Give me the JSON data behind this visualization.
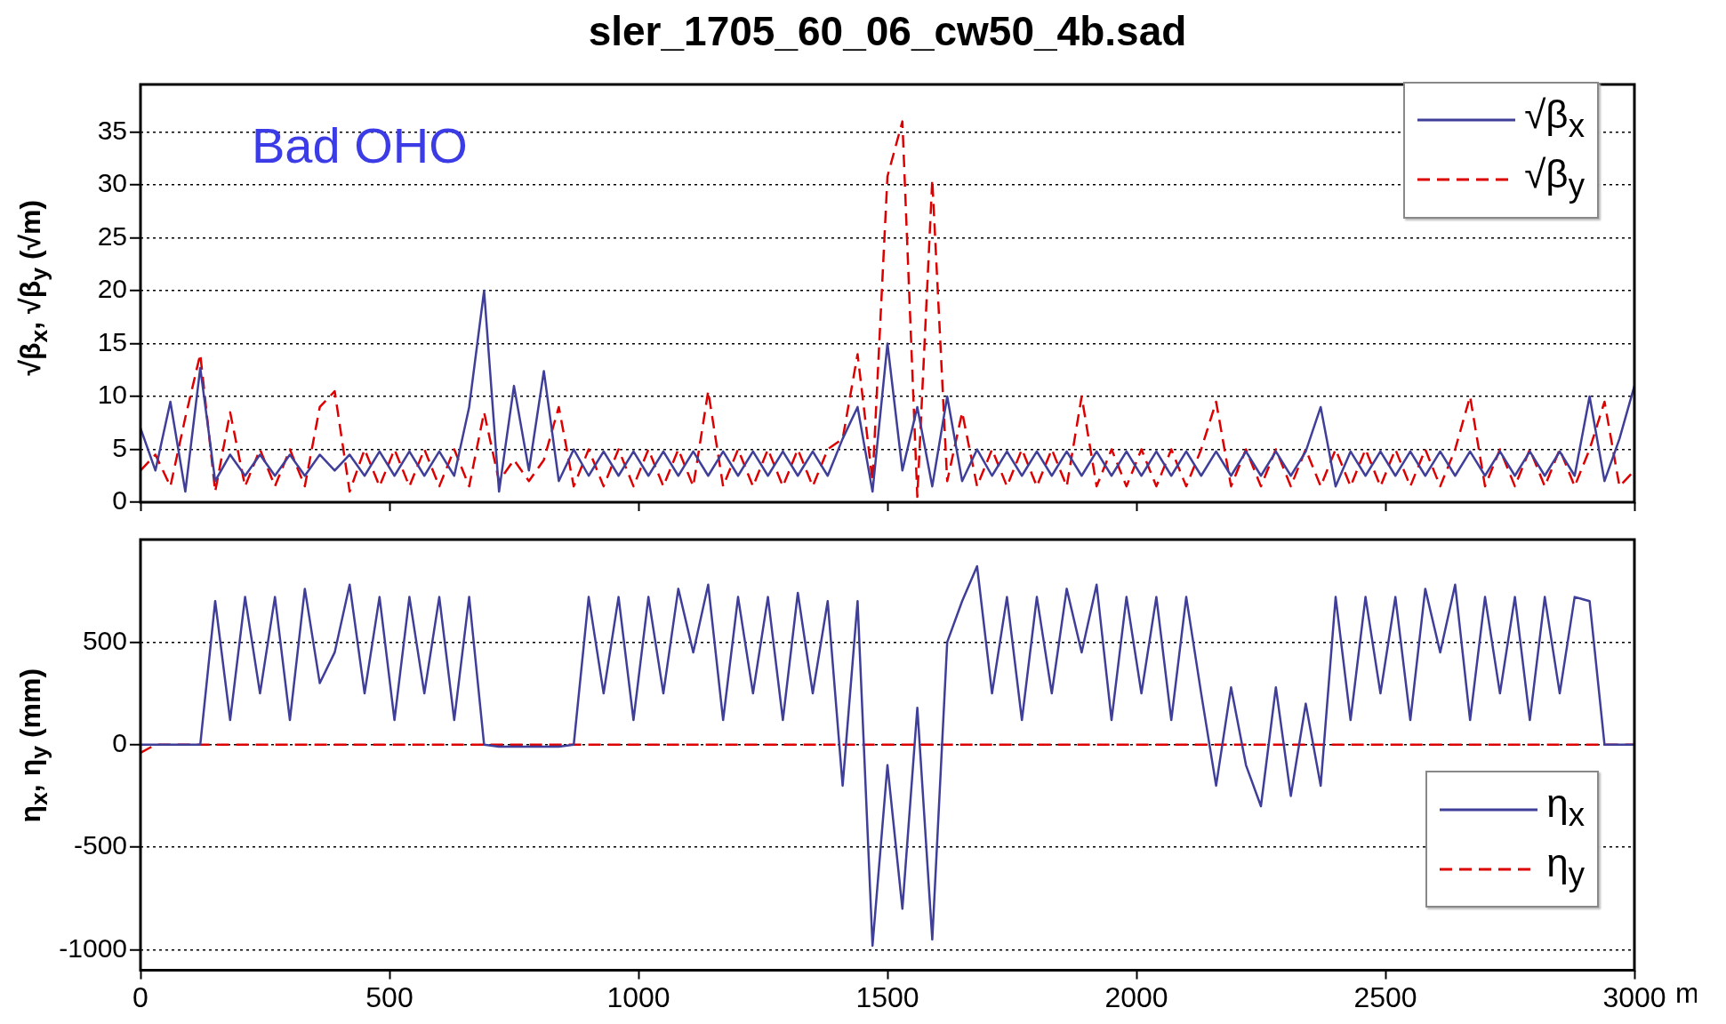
{
  "chart_data": [
    {
      "type": "line",
      "title": "sler_1705_60_06_cw50_4b.sad",
      "ylabel": "√β$_{x}$, √β$_{y}$ (√m)",
      "annotations": [
        "Bad OHO"
      ],
      "legend": "top right",
      "tick_labels": "y",
      "grid": "y",
      "marker": "none",
      "xlim": [
        0,
        3000
      ],
      "xticks": [
        0,
        500,
        1000,
        1500,
        2000,
        2500,
        3000
      ],
      "ylim": [
        0,
        39.5
      ],
      "yticks": [
        0,
        5,
        10,
        15,
        20,
        25,
        30,
        35
      ],
      "x": [
        0,
        30,
        60,
        90,
        120,
        150,
        180,
        210,
        240,
        270,
        300,
        330,
        360,
        390,
        420,
        450,
        480,
        510,
        540,
        570,
        600,
        630,
        660,
        690,
        720,
        750,
        780,
        810,
        840,
        870,
        900,
        930,
        960,
        990,
        1020,
        1050,
        1080,
        1110,
        1140,
        1170,
        1200,
        1230,
        1260,
        1290,
        1320,
        1350,
        1380,
        1410,
        1440,
        1470,
        1500,
        1530,
        1560,
        1590,
        1620,
        1650,
        1680,
        1710,
        1740,
        1770,
        1800,
        1830,
        1860,
        1890,
        1920,
        1950,
        1980,
        2010,
        2040,
        2070,
        2100,
        2130,
        2160,
        2190,
        2220,
        2250,
        2280,
        2310,
        2340,
        2370,
        2400,
        2430,
        2460,
        2490,
        2520,
        2550,
        2580,
        2610,
        2640,
        2670,
        2700,
        2730,
        2760,
        2790,
        2820,
        2850,
        2880,
        2910,
        2940,
        2970,
        3000
      ],
      "series": [
        {
          "name": "√β$_{x}$",
          "color": "#3f3f9a",
          "line_style": "solid",
          "values": [
            7,
            3,
            9.5,
            1,
            12.7,
            2,
            4.5,
            2.5,
            4.5,
            2.5,
            4.5,
            2.5,
            4.5,
            3,
            4.5,
            2.5,
            4.8,
            2.5,
            4.8,
            2.5,
            4.8,
            2.5,
            9,
            20,
            1,
            11,
            3,
            12.4,
            2,
            5,
            2.5,
            4.8,
            2.5,
            4.8,
            2.5,
            4.8,
            2.5,
            4.8,
            2.5,
            4.8,
            2.5,
            4.8,
            2.5,
            4.8,
            2.5,
            4.8,
            2.5,
            6,
            9,
            1,
            15,
            3,
            9,
            1.5,
            10,
            2,
            5,
            2.5,
            4.8,
            2.5,
            4.8,
            2.5,
            4.8,
            2.5,
            4.8,
            2.5,
            4.8,
            2.5,
            4.8,
            2.5,
            4.8,
            2.5,
            4.8,
            2.5,
            4.8,
            2.5,
            4.8,
            2.5,
            4.8,
            9,
            1.5,
            4.8,
            2.5,
            4.8,
            2.5,
            4.8,
            2.5,
            4.8,
            2.5,
            4.8,
            2.5,
            4.8,
            2.5,
            4.8,
            2.5,
            4.8,
            2.5,
            10,
            2,
            6,
            11
          ]
        },
        {
          "name": "√β$_{y}$",
          "color": "#dd0000",
          "line_style": "dashed",
          "values": [
            3,
            4.5,
            1.5,
            8,
            14,
            1,
            8.5,
            1.5,
            5,
            1.5,
            5,
            1.5,
            9,
            10.5,
            1,
            5,
            1.5,
            5,
            1.5,
            5,
            1.5,
            5,
            1.5,
            8.5,
            2,
            4,
            2,
            4,
            9,
            1.5,
            5,
            1.5,
            5,
            1.5,
            5,
            1.5,
            5,
            1.5,
            10.5,
            1.5,
            5,
            1.5,
            5,
            1.5,
            5,
            1.5,
            5,
            6,
            14,
            2,
            30.8,
            36,
            0.5,
            30.5,
            2,
            8.5,
            1.5,
            5,
            1.5,
            5,
            1.5,
            5,
            1.5,
            10,
            1.5,
            5,
            1.5,
            5,
            1.5,
            5,
            1.5,
            5,
            9.5,
            1.5,
            5,
            1.5,
            5,
            1.5,
            5,
            1.5,
            5,
            1.5,
            5,
            1.5,
            5,
            1.5,
            5,
            1.5,
            5,
            10,
            1.5,
            5,
            1.5,
            5,
            1.5,
            5,
            1.5,
            5,
            9.5,
            1.5,
            3
          ]
        }
      ]
    },
    {
      "type": "line",
      "xlabel": "m",
      "ylabel": "η$_{x}$, η$_{y}$ (mm)",
      "legend": "bottom right",
      "grid": "y",
      "marker": "none",
      "xlim": [
        0,
        3000
      ],
      "xticks": [
        0,
        500,
        1000,
        1500,
        2000,
        2500,
        3000
      ],
      "ylim": [
        -1100,
        1000
      ],
      "yticks": [
        -1000,
        -500,
        0,
        500
      ],
      "x": [
        0,
        30,
        60,
        90,
        120,
        150,
        180,
        210,
        240,
        270,
        300,
        330,
        360,
        390,
        420,
        450,
        480,
        510,
        540,
        570,
        600,
        630,
        660,
        690,
        720,
        750,
        780,
        810,
        840,
        870,
        900,
        930,
        960,
        990,
        1020,
        1050,
        1080,
        1110,
        1140,
        1170,
        1200,
        1230,
        1260,
        1290,
        1320,
        1350,
        1380,
        1410,
        1440,
        1470,
        1500,
        1530,
        1560,
        1590,
        1620,
        1650,
        1680,
        1710,
        1740,
        1770,
        1800,
        1830,
        1860,
        1890,
        1920,
        1950,
        1980,
        2010,
        2040,
        2070,
        2100,
        2130,
        2160,
        2190,
        2220,
        2250,
        2280,
        2310,
        2340,
        2370,
        2400,
        2430,
        2460,
        2490,
        2520,
        2550,
        2580,
        2610,
        2640,
        2670,
        2700,
        2730,
        2760,
        2790,
        2820,
        2850,
        2880,
        2910,
        2940,
        2970,
        3000
      ],
      "series": [
        {
          "name": "η$_{x}$",
          "color": "#3f3f9a",
          "line_style": "solid",
          "values": [
            0,
            0,
            0,
            0,
            0,
            700,
            120,
            720,
            250,
            720,
            120,
            760,
            300,
            450,
            780,
            250,
            720,
            120,
            720,
            250,
            720,
            120,
            720,
            0,
            -10,
            -10,
            -10,
            -10,
            -10,
            0,
            720,
            250,
            720,
            120,
            720,
            250,
            760,
            450,
            780,
            120,
            720,
            250,
            720,
            120,
            740,
            250,
            700,
            -200,
            700,
            -980,
            -100,
            -800,
            180,
            -950,
            500,
            700,
            870,
            250,
            720,
            120,
            720,
            250,
            760,
            450,
            780,
            120,
            720,
            250,
            720,
            120,
            720,
            250,
            -200,
            280,
            -100,
            -300,
            280,
            -250,
            200,
            -200,
            720,
            120,
            720,
            250,
            720,
            120,
            760,
            450,
            780,
            120,
            720,
            250,
            720,
            120,
            720,
            250,
            720,
            700,
            0,
            0,
            0
          ]
        },
        {
          "name": "η$_{y}$",
          "color": "#dd0000",
          "line_style": "dashed",
          "values": [
            -40,
            0,
            0,
            0,
            0,
            0,
            0,
            0,
            0,
            0,
            0,
            0,
            0,
            0,
            0,
            0,
            0,
            0,
            0,
            0,
            0,
            0,
            0,
            0,
            0,
            0,
            0,
            0,
            0,
            0,
            0,
            0,
            0,
            0,
            0,
            0,
            0,
            0,
            0,
            0,
            0,
            0,
            0,
            0,
            0,
            0,
            0,
            0,
            0,
            0,
            0,
            0,
            0,
            0,
            0,
            0,
            0,
            0,
            0,
            0,
            0,
            0,
            0,
            0,
            0,
            0,
            0,
            0,
            0,
            0,
            0,
            0,
            0,
            0,
            0,
            0,
            0,
            0,
            0,
            0,
            0,
            0,
            0,
            0,
            0,
            0,
            0,
            0,
            0,
            0,
            0,
            0,
            0,
            0,
            0,
            0,
            0,
            0,
            0,
            0,
            0
          ]
        }
      ]
    }
  ]
}
